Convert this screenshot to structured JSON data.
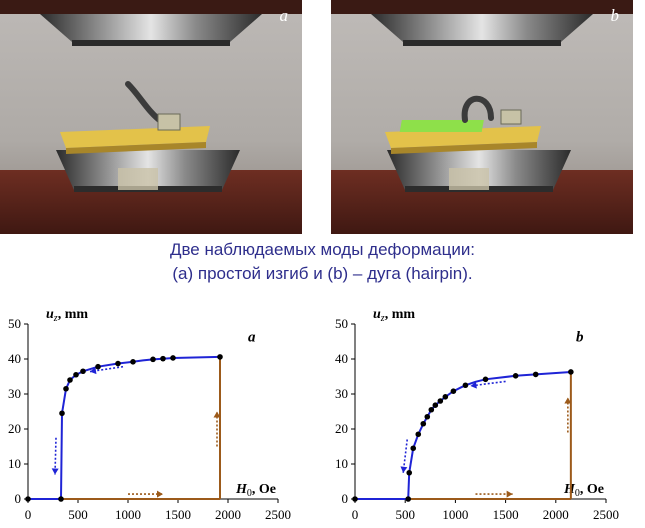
{
  "photos": [
    {
      "label": "a"
    },
    {
      "label": "b"
    }
  ],
  "caption": {
    "line1": "Две наблюдаемых моды деформации:",
    "line2": "(a) простой изгиб и (b) – дуга (hairpin)."
  },
  "colors": {
    "caption": "#2e2e8c",
    "curve": "#1f24d6",
    "frame": "#9c5a1a",
    "arrow_blue": "#1f24d6",
    "arrow_brown": "#9c5a1a"
  },
  "chart_data": [
    {
      "type": "line",
      "panel_label": "a",
      "ylabel_var": "u",
      "ylabel_sub": "z",
      "ylabel_unit": ", mm",
      "xlabel_var": "H",
      "xlabel_sub": "0",
      "xlabel_unit": ", Oe",
      "xlim": [
        0,
        2500
      ],
      "ylim": [
        0,
        50
      ],
      "xticks": [
        "0",
        "500",
        "1000",
        "1500",
        "2000",
        "2500"
      ],
      "yticks": [
        "0",
        "10",
        "20",
        "30",
        "40",
        "50"
      ],
      "series": [
        {
          "x": [
            0,
            330,
            340,
            380,
            420,
            480,
            550,
            700,
            900,
            1050,
            1150,
            1250,
            1350,
            1450,
            1920
          ],
          "y": [
            0,
            0,
            24.5,
            31.5,
            34,
            35.5,
            36.5,
            37.8,
            38.7,
            39.2,
            39.6,
            39.9,
            40.1,
            40.3,
            40.6
          ],
          "markers": [
            0,
            330,
            340,
            380,
            420,
            480,
            550,
            700,
            900,
            1050,
            1250,
            1350,
            1450,
            1920
          ]
        }
      ],
      "frame": {
        "x_jump": 1920,
        "y_top": 40.6
      },
      "arrows": [
        {
          "kind": "blue",
          "from": [
            950,
            37.8
          ],
          "to": [
            620,
            36.4
          ]
        },
        {
          "kind": "blue",
          "from": [
            280,
            17.5
          ],
          "to": [
            270,
            7
          ]
        },
        {
          "kind": "brown",
          "from": [
            1000,
            1.4
          ],
          "to": [
            1350,
            1.4
          ]
        },
        {
          "kind": "brown",
          "from": [
            1890,
            15
          ],
          "to": [
            1890,
            25
          ]
        }
      ]
    },
    {
      "type": "line",
      "panel_label": "b",
      "ylabel_var": "u",
      "ylabel_sub": "z",
      "ylabel_unit": ", mm",
      "xlabel_var": "H",
      "xlabel_sub": "0",
      "xlabel_unit": ", Oe",
      "xlim": [
        0,
        2500
      ],
      "ylim": [
        0,
        50
      ],
      "xticks": [
        "0",
        "500",
        "1000",
        "1500",
        "2000",
        "2500"
      ],
      "yticks": [
        "0",
        "10",
        "20",
        "30",
        "40",
        "50"
      ],
      "series": [
        {
          "x": [
            0,
            530,
            540,
            580,
            630,
            680,
            720,
            760,
            800,
            850,
            900,
            980,
            1050,
            1100,
            1200,
            1300,
            1600,
            1800,
            2150
          ],
          "y": [
            0,
            0,
            7.5,
            14.5,
            18.5,
            21.5,
            23.5,
            25.5,
            26.8,
            28,
            29.2,
            30.8,
            31.8,
            32.5,
            33.5,
            34.2,
            35.2,
            35.6,
            36.3
          ],
          "markers": [
            0,
            530,
            540,
            580,
            630,
            680,
            720,
            760,
            800,
            850,
            900,
            980,
            1100,
            1300,
            1600,
            1800,
            2150
          ]
        }
      ],
      "frame": {
        "x_jump": 2150,
        "y_top": 36.3
      },
      "arrows": [
        {
          "kind": "blue",
          "from": [
            1500,
            33.6
          ],
          "to": [
            1150,
            32.3
          ]
        },
        {
          "kind": "blue",
          "from": [
            520,
            17
          ],
          "to": [
            480,
            7.5
          ]
        },
        {
          "kind": "brown",
          "from": [
            1200,
            1.4
          ],
          "to": [
            1570,
            1.4
          ]
        },
        {
          "kind": "brown",
          "from": [
            2120,
            19
          ],
          "to": [
            2120,
            29
          ]
        }
      ]
    }
  ]
}
